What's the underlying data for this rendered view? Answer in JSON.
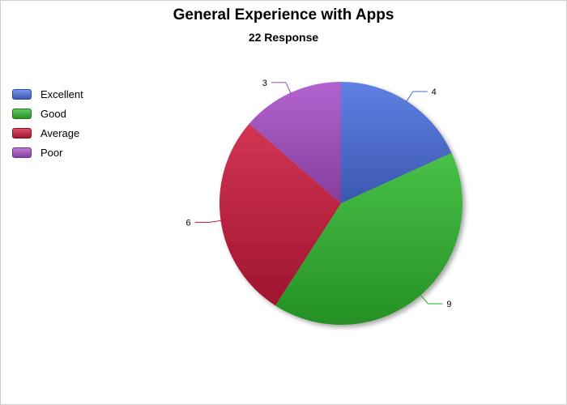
{
  "chart_data": {
    "type": "pie",
    "title": "General Experience with Apps",
    "subtitle": "22 Response",
    "categories": [
      "Excellent",
      "Good",
      "Average",
      "Poor"
    ],
    "values": [
      4,
      9,
      6,
      3
    ],
    "data_labels": [
      "4",
      "9",
      "6",
      "3"
    ],
    "colors": [
      "#4a70e0",
      "#2fb82f",
      "#cc1a3c",
      "#a94ec9"
    ],
    "start_angle_deg": 0,
    "direction": "clockwise",
    "legend_position": "left",
    "grid": false
  }
}
